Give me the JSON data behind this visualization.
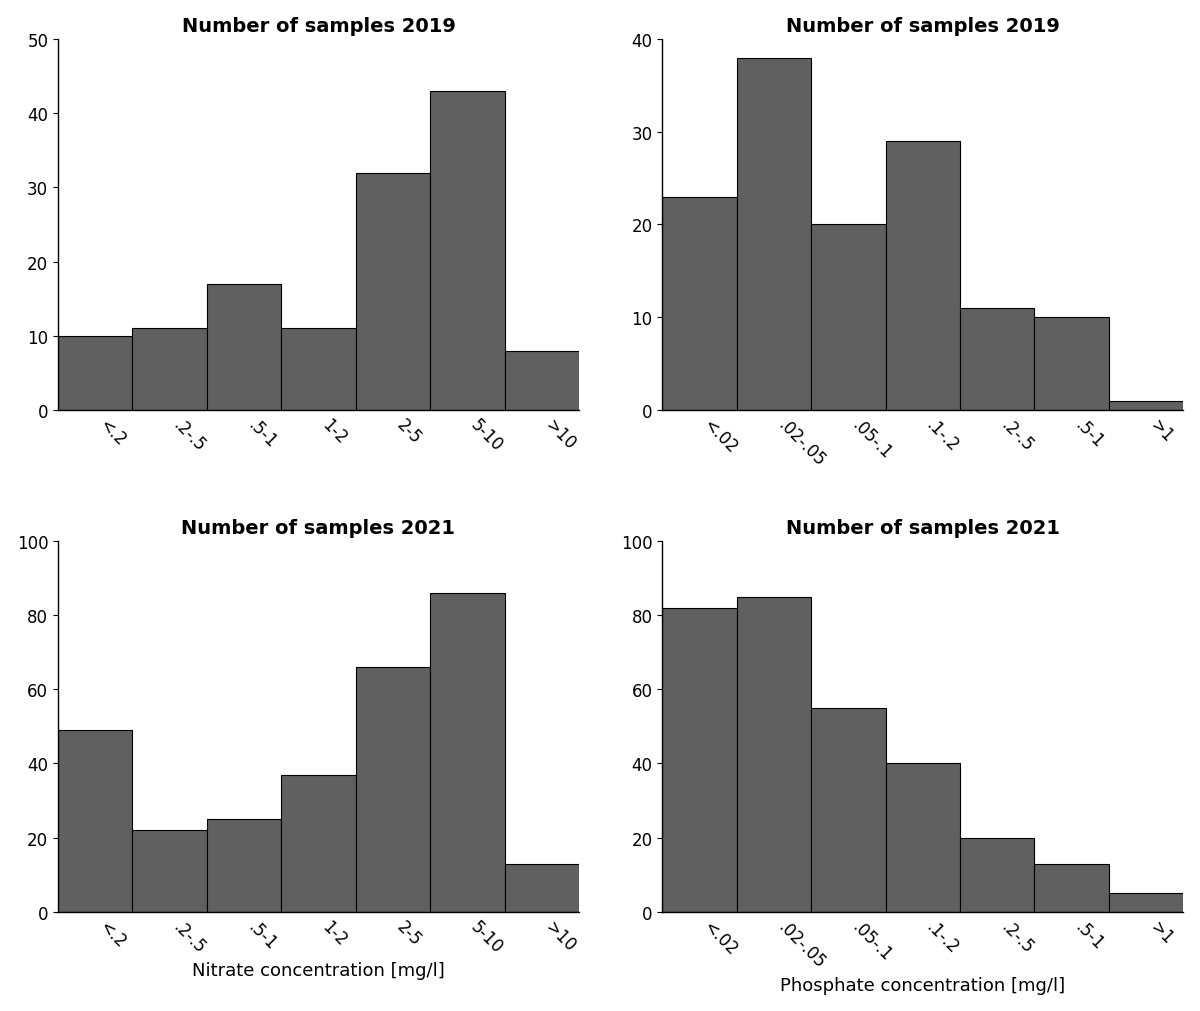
{
  "nitrate_2019": {
    "title": "Number of samples 2019",
    "values": [
      10,
      11,
      17,
      11,
      32,
      43,
      8
    ],
    "labels": [
      "<.2",
      ".2-.5",
      ".5-1",
      "1-2",
      "2-5",
      "5-10",
      ">10"
    ],
    "ylim": [
      0,
      50
    ],
    "yticks": [
      0,
      10,
      20,
      30,
      40,
      50
    ]
  },
  "phosphate_2019": {
    "title": "Number of samples 2019",
    "values": [
      23,
      38,
      20,
      29,
      11,
      10,
      1
    ],
    "labels": [
      "<.02",
      ".02-.05",
      ".05-.1",
      ".1-.2",
      ".2-.5",
      ".5-1",
      ">1"
    ],
    "ylim": [
      0,
      40
    ],
    "yticks": [
      0,
      10,
      20,
      30,
      40
    ]
  },
  "nitrate_2021": {
    "title": "Number of samples 2021",
    "values": [
      49,
      22,
      25,
      37,
      66,
      86,
      13
    ],
    "labels": [
      "<.2",
      ".2-.5",
      ".5-1",
      "1-2",
      "2-5",
      "5-10",
      ">10"
    ],
    "ylim": [
      0,
      100
    ],
    "yticks": [
      0,
      20,
      40,
      60,
      80,
      100
    ],
    "xlabel": "Nitrate concentration [mg/l]"
  },
  "phosphate_2021": {
    "title": "Number of samples 2021",
    "values": [
      82,
      85,
      55,
      40,
      20,
      13,
      5
    ],
    "labels": [
      "<.02",
      ".02-.05",
      ".05-.1",
      ".1-.2",
      ".2-.5",
      ".5-1",
      ">1"
    ],
    "ylim": [
      0,
      100
    ],
    "yticks": [
      0,
      20,
      40,
      60,
      80,
      100
    ],
    "xlabel": "Phosphate concentration [mg/l]"
  },
  "bar_color": "#606060",
  "bar_edgecolor": "#000000",
  "background_color": "#ffffff",
  "title_fontsize": 14,
  "label_fontsize": 13,
  "tick_fontsize": 12
}
